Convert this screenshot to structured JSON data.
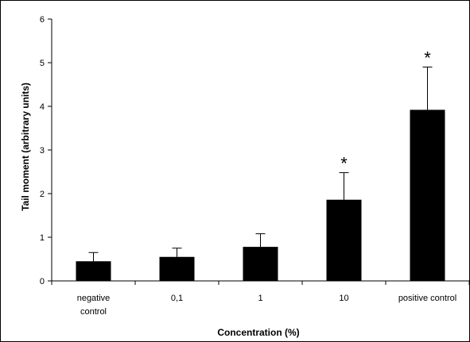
{
  "chart_data": {
    "type": "bar",
    "categories": [
      "negative control",
      "0,1",
      "1",
      "10",
      "positive control"
    ],
    "category_lines": [
      [
        "negative",
        "control"
      ],
      [
        "0,1"
      ],
      [
        "1"
      ],
      [
        "10"
      ],
      [
        "positive control"
      ]
    ],
    "values": [
      0.45,
      0.55,
      0.78,
      1.86,
      3.92
    ],
    "errors": [
      0.2,
      0.2,
      0.3,
      0.62,
      0.98
    ],
    "significant": [
      false,
      false,
      false,
      true,
      true
    ],
    "annotation_symbol": "*",
    "xlabel": "Concentration (%)",
    "ylabel": "Tail moment (arbitrary units)",
    "ylim": [
      0,
      6
    ],
    "yticks": [
      0,
      1,
      2,
      3,
      4,
      5,
      6
    ],
    "grid": false,
    "legend": "none",
    "colors": {
      "bar": "#000000",
      "axis": "#000000",
      "background": "#ffffff"
    }
  }
}
